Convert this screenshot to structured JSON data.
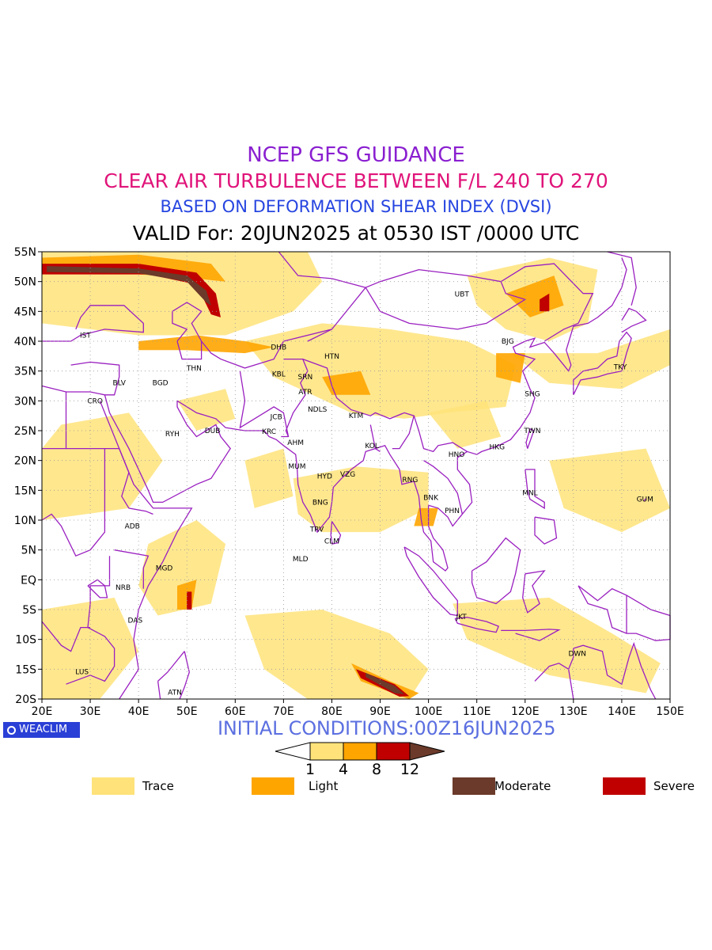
{
  "titles": {
    "line1": "NCEP GFS GUIDANCE",
    "line2": "CLEAR AIR TURBULENCE BETWEEN F/L 240 TO 270",
    "line3": "BASED ON DEFORMATION SHEAR INDEX (DVSI)",
    "line4": "VALID For: 20JUN2025 at 0530 IST /0000 UTC",
    "color1": "#8a1fd0",
    "color2": "#e0147a",
    "color3": "#2645e0"
  },
  "axes": {
    "lon_ticks": [
      "20E",
      "30E",
      "40E",
      "50E",
      "60E",
      "70E",
      "80E",
      "90E",
      "100E",
      "110E",
      "120E",
      "130E",
      "140E",
      "150E"
    ],
    "lat_ticks": [
      "55N",
      "50N",
      "45N",
      "40N",
      "35N",
      "30N",
      "25N",
      "20N",
      "15N",
      "10N",
      "5N",
      "EQ",
      "5S",
      "10S",
      "15S",
      "20S"
    ],
    "lon_range": [
      20,
      150
    ],
    "lat_range": [
      -20,
      55
    ],
    "grid": "dotted"
  },
  "stations": [
    {
      "code": "IST",
      "lon": 29,
      "lat": 41
    },
    {
      "code": "BLV",
      "lon": 36,
      "lat": 33
    },
    {
      "code": "CRO",
      "lon": 31,
      "lat": 30
    },
    {
      "code": "BGD",
      "lon": 44.5,
      "lat": 33
    },
    {
      "code": "THN",
      "lon": 51.5,
      "lat": 35.5
    },
    {
      "code": "RYH",
      "lon": 47,
      "lat": 24.5
    },
    {
      "code": "DUB",
      "lon": 55.3,
      "lat": 25
    },
    {
      "code": "DHB",
      "lon": 69,
      "lat": 39
    },
    {
      "code": "KBL",
      "lon": 69,
      "lat": 34.5
    },
    {
      "code": "SRN",
      "lon": 74.5,
      "lat": 34
    },
    {
      "code": "HTN",
      "lon": 80,
      "lat": 37.5
    },
    {
      "code": "ATR",
      "lon": 74.5,
      "lat": 31.5
    },
    {
      "code": "JCB",
      "lon": 68.5,
      "lat": 27.3
    },
    {
      "code": "NDLS",
      "lon": 77,
      "lat": 28.6
    },
    {
      "code": "KTM",
      "lon": 85,
      "lat": 27.5
    },
    {
      "code": "KRC",
      "lon": 67,
      "lat": 24.9
    },
    {
      "code": "AHM",
      "lon": 72.5,
      "lat": 23
    },
    {
      "code": "KOL",
      "lon": 88.3,
      "lat": 22.5
    },
    {
      "code": "MUM",
      "lon": 72.8,
      "lat": 19
    },
    {
      "code": "HYD",
      "lon": 78.5,
      "lat": 17.4
    },
    {
      "code": "VZG",
      "lon": 83.3,
      "lat": 17.7
    },
    {
      "code": "BNG",
      "lon": 77.6,
      "lat": 13
    },
    {
      "code": "TRV",
      "lon": 76.9,
      "lat": 8.5
    },
    {
      "code": "CLM",
      "lon": 80,
      "lat": 6.5
    },
    {
      "code": "MLD",
      "lon": 73.5,
      "lat": 3.5
    },
    {
      "code": "RNG",
      "lon": 96.2,
      "lat": 16.8
    },
    {
      "code": "BNK",
      "lon": 100.5,
      "lat": 13.8
    },
    {
      "code": "PHN",
      "lon": 104.9,
      "lat": 11.6
    },
    {
      "code": "HNO",
      "lon": 105.8,
      "lat": 21
    },
    {
      "code": "HKG",
      "lon": 114.2,
      "lat": 22.3
    },
    {
      "code": "TWN",
      "lon": 121.5,
      "lat": 25
    },
    {
      "code": "SHG",
      "lon": 121.5,
      "lat": 31.2
    },
    {
      "code": "BJG",
      "lon": 116.4,
      "lat": 40
    },
    {
      "code": "UBT",
      "lon": 106.9,
      "lat": 47.9
    },
    {
      "code": "TKY",
      "lon": 139.7,
      "lat": 35.7
    },
    {
      "code": "MNL",
      "lon": 121,
      "lat": 14.6
    },
    {
      "code": "GUM",
      "lon": 144.8,
      "lat": 13.5
    },
    {
      "code": "JKT",
      "lon": 106.8,
      "lat": -6.2
    },
    {
      "code": "DWN",
      "lon": 130.8,
      "lat": -12.4
    },
    {
      "code": "ADB",
      "lon": 38.7,
      "lat": 9
    },
    {
      "code": "MGD",
      "lon": 45.3,
      "lat": 2
    },
    {
      "code": "NRB",
      "lon": 36.8,
      "lat": -1.3
    },
    {
      "code": "DAS",
      "lon": 39.3,
      "lat": -6.8
    },
    {
      "code": "LUS",
      "lon": 28.3,
      "lat": -15.4
    },
    {
      "code": "ATN",
      "lon": 47.5,
      "lat": -18.9
    }
  ],
  "colorbar": {
    "thresholds": [
      "1",
      "4",
      "8",
      "12"
    ],
    "colors": [
      "#ffffff",
      "#ffe37a",
      "#ffa500",
      "#c00000",
      "#6b3a2a"
    ]
  },
  "legend": [
    {
      "label": "Trace",
      "color": "#ffe37a"
    },
    {
      "label": "Light",
      "color": "#ffa500"
    },
    {
      "label": "Moderate",
      "color": "#6b3a2a"
    },
    {
      "label": "Severe",
      "color": "#c00000"
    }
  ],
  "footer": {
    "logo": "WEACLIM",
    "initial_conditions": "INITIAL CONDITIONS:00Z16JUN2025",
    "initial_color": "#5b6fe0"
  },
  "map_colors": {
    "border": "#9a1fc0",
    "trace": "#ffe37a",
    "light": "#ffa500",
    "severe": "#c00000",
    "moderate": "#6b3a2a"
  }
}
